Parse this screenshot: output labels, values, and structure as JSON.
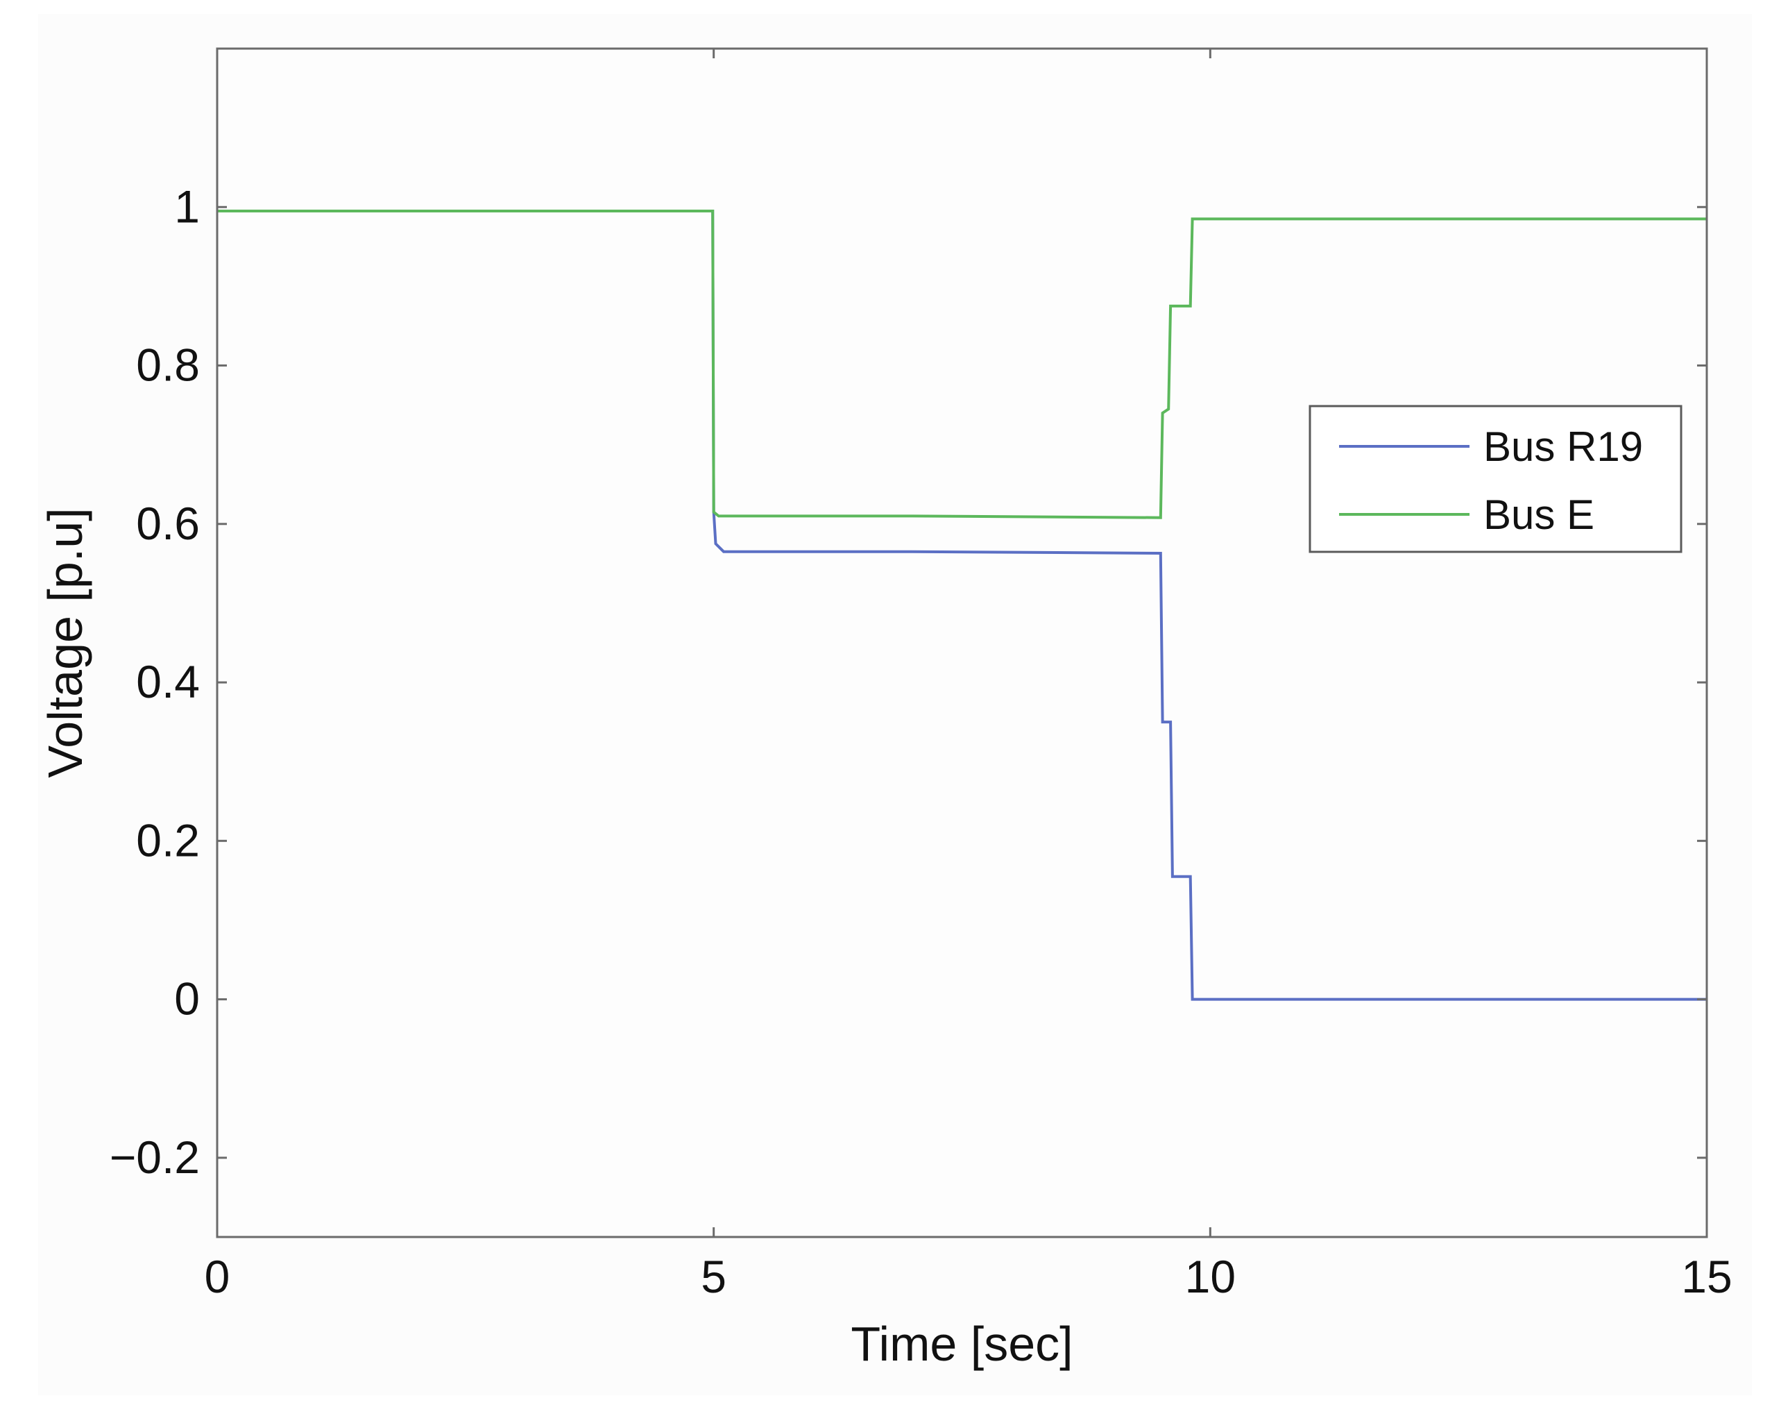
{
  "chart_data": {
    "type": "line",
    "xlabel": "Time [sec]",
    "ylabel": "Voltage [p.u]",
    "xlim": [
      0,
      15
    ],
    "ylim": [
      -0.3,
      1.2
    ],
    "xticks": [
      0,
      5,
      10,
      15
    ],
    "xtick_labels": [
      "0",
      "5",
      "10",
      "15"
    ],
    "yticks": [
      -0.2,
      0,
      0.2,
      0.4,
      0.6,
      0.8,
      1
    ],
    "ytick_labels": [
      "−0.2",
      "0",
      "0.2",
      "0.4",
      "0.6",
      "0.8",
      "1"
    ],
    "grid": false,
    "legend_position": "right",
    "series": [
      {
        "name": "Bus R19",
        "color": "#5b6fc4",
        "points": [
          [
            0,
            0.995
          ],
          [
            4.99,
            0.995
          ],
          [
            5.0,
            0.615
          ],
          [
            5.02,
            0.575
          ],
          [
            5.1,
            0.565
          ],
          [
            7.0,
            0.565
          ],
          [
            9.5,
            0.563
          ],
          [
            9.52,
            0.35
          ],
          [
            9.6,
            0.35
          ],
          [
            9.62,
            0.155
          ],
          [
            9.8,
            0.155
          ],
          [
            9.82,
            0.0
          ],
          [
            15,
            0.0
          ]
        ]
      },
      {
        "name": "Bus E",
        "color": "#5cb85c",
        "points": [
          [
            0,
            0.995
          ],
          [
            4.99,
            0.995
          ],
          [
            5.0,
            0.615
          ],
          [
            5.05,
            0.61
          ],
          [
            7.0,
            0.61
          ],
          [
            9.5,
            0.608
          ],
          [
            9.52,
            0.74
          ],
          [
            9.58,
            0.745
          ],
          [
            9.6,
            0.875
          ],
          [
            9.8,
            0.875
          ],
          [
            9.82,
            0.985
          ],
          [
            15,
            0.985
          ]
        ]
      }
    ]
  }
}
